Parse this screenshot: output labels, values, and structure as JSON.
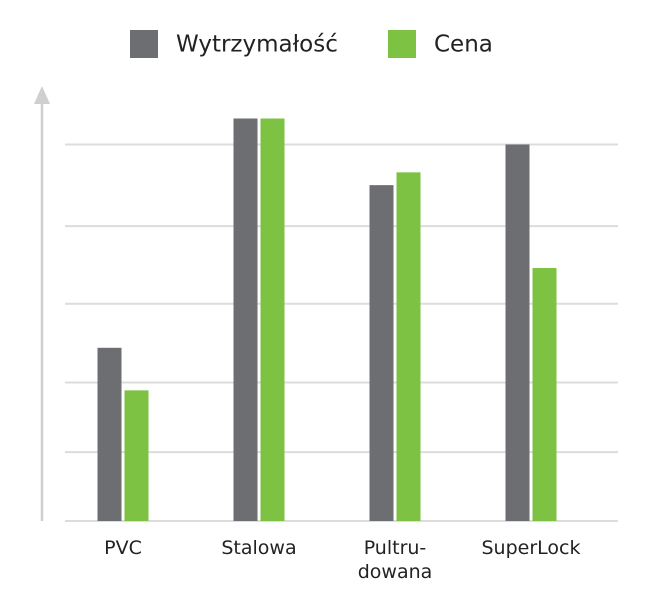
{
  "chart_data": {
    "type": "bar",
    "categories": [
      "PVC",
      "Stalowa",
      "Pultru-\ndowana",
      "SuperLock"
    ],
    "series": [
      {
        "name": "Wytrzymałość",
        "color": "#6d6e71",
        "values": [
          46.0,
          106.9,
          89.2,
          100
        ]
      },
      {
        "name": "Cena",
        "color": "#7dc242",
        "values": [
          34.7,
          106.9,
          92.6,
          67.2
        ]
      }
    ],
    "ylim": [
      0,
      115
    ],
    "yticks": [
      0,
      18.3,
      36.8,
      57.7,
      78.3,
      100
    ],
    "grid": true
  }
}
